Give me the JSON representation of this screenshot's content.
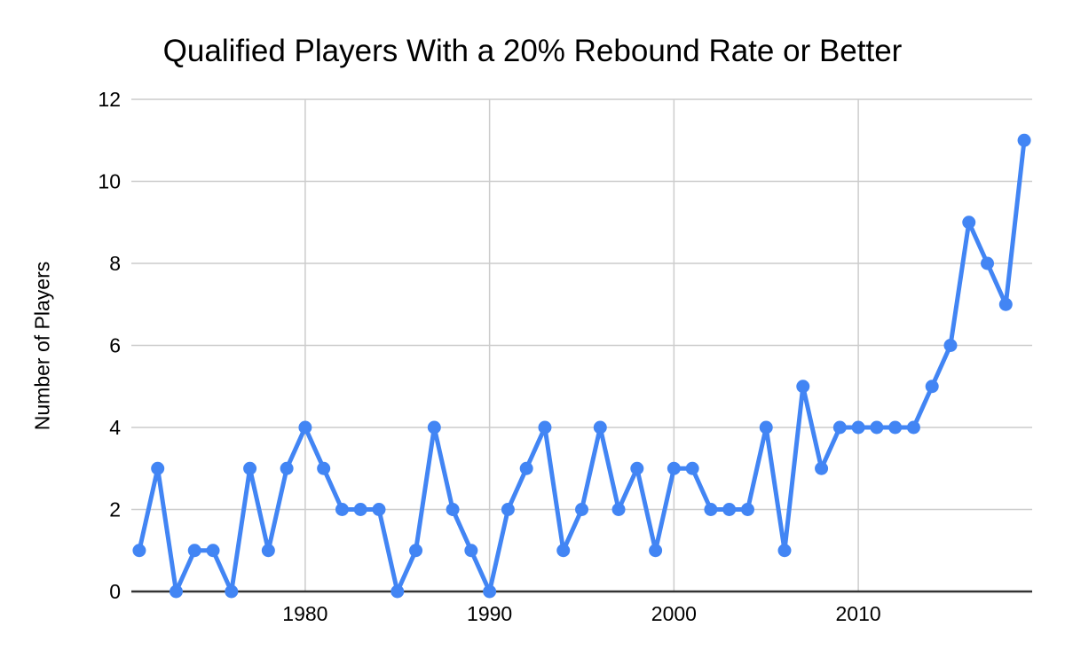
{
  "chart_data": {
    "type": "line",
    "title": "Qualified Players With a 20% Rebound Rate or Better",
    "xlabel": "",
    "ylabel": "Number of Players",
    "x": [
      1971,
      1972,
      1973,
      1974,
      1975,
      1976,
      1977,
      1978,
      1979,
      1980,
      1981,
      1982,
      1983,
      1984,
      1985,
      1986,
      1987,
      1988,
      1989,
      1990,
      1991,
      1992,
      1993,
      1994,
      1995,
      1996,
      1997,
      1998,
      1999,
      2000,
      2001,
      2002,
      2003,
      2004,
      2005,
      2006,
      2007,
      2008,
      2009,
      2010,
      2011,
      2012,
      2013,
      2014,
      2015,
      2016,
      2017,
      2018,
      2019
    ],
    "values": [
      1,
      3,
      0,
      1,
      1,
      0,
      3,
      1,
      3,
      4,
      3,
      2,
      2,
      2,
      0,
      1,
      4,
      2,
      1,
      0,
      2,
      3,
      4,
      1,
      2,
      4,
      2,
      3,
      1,
      3,
      3,
      2,
      2,
      2,
      4,
      1,
      5,
      3,
      4,
      4,
      4,
      4,
      4,
      5,
      6,
      9,
      8,
      7,
      11
    ],
    "xticks": [
      1980,
      1990,
      2000,
      2010
    ],
    "yticks": [
      0,
      2,
      4,
      6,
      8,
      10,
      12
    ],
    "xlim": [
      1970.57,
      2019.43
    ],
    "ylim": [
      0,
      12
    ],
    "grid": true,
    "legend": "none",
    "colors": {
      "line": "#4285f4",
      "grid": "#cccccc",
      "axis": "#333333",
      "text": "#000000"
    }
  }
}
